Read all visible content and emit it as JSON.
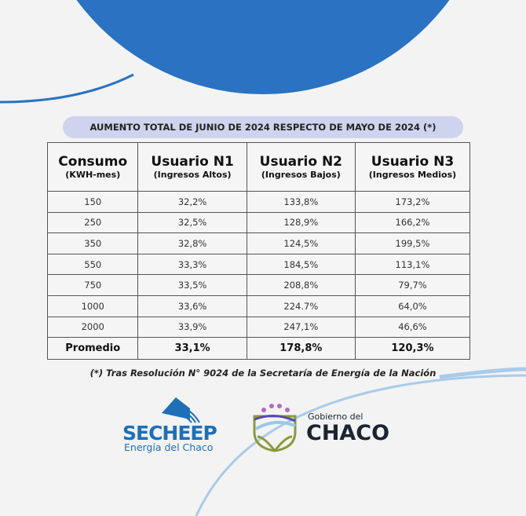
{
  "banner": "AUMENTO TOTAL DE JUNIO DE 2024 RESPECTO DE MAYO DE 2024 (*)",
  "table": {
    "headers": [
      {
        "title": "Consumo",
        "sub": "(KWH-mes)"
      },
      {
        "title": "Usuario N1",
        "sub": "(Ingresos Altos)"
      },
      {
        "title": "Usuario N2",
        "sub": "(Ingresos Bajos)"
      },
      {
        "title": "Usuario N3",
        "sub": "(Ingresos Medios)"
      }
    ],
    "rows": [
      [
        "150",
        "32,2%",
        "133,8%",
        "173,2%"
      ],
      [
        "250",
        "32,5%",
        "128,9%",
        "166,2%"
      ],
      [
        "350",
        "32,8%",
        "124,5%",
        "199,5%"
      ],
      [
        "550",
        "33,3%",
        "184,5%",
        "113,1%"
      ],
      [
        "750",
        "33,5%",
        "208,8%",
        "79,7%"
      ],
      [
        "1000",
        "33,6%",
        "224.7%",
        "64,0%"
      ],
      [
        "2000",
        "33,9%",
        "247,1%",
        "46,6%"
      ]
    ],
    "average": [
      "Promedio",
      "33,1%",
      "178,8%",
      "120,3%"
    ]
  },
  "note": "(*) Tras Resolución N° 9024 de la Secretaría de Energía de la Nación",
  "logos": {
    "secheep": {
      "name": "SECHEEP",
      "tagline": "Energía del Chaco"
    },
    "chaco": {
      "small": "Gobierno del",
      "big": "CHACO"
    }
  },
  "colors": {
    "circle": "#2b72c2",
    "banner": "#cfd4ee",
    "brand_blue": "#1f6fb8",
    "chaco_navy": "#1b2433"
  }
}
